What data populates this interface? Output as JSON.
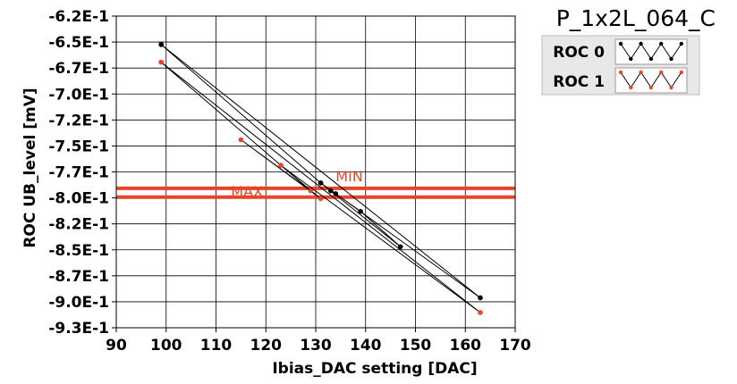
{
  "chart_data": {
    "type": "line",
    "title": "P_1x2L_064_C",
    "xlabel": "Ibias_DAC setting [DAC]",
    "ylabel": "ROC UB_level [mV]",
    "xlim": [
      90,
      170
    ],
    "ylim": [
      -0.9375,
      -0.62
    ],
    "x_ticks": [
      "90",
      "100",
      "110",
      "120",
      "130",
      "140",
      "150",
      "160",
      "170"
    ],
    "y_ticks": [
      "-6.2E-1",
      "-6.5E-1",
      "-6.7E-1",
      "-7.0E-1",
      "-7.2E-1",
      "-7.5E-1",
      "-7.7E-1",
      "-8.0E-1",
      "-8.2E-1",
      "-8.5E-1",
      "-8.7E-1",
      "-9.0E-1",
      "-9.3E-1"
    ],
    "grid": true,
    "legend_position": "top-right",
    "series": [
      {
        "name": "ROC 0",
        "color": "#000000",
        "x": [
          99,
          163,
          131,
          147,
          139,
          134,
          133,
          131,
          99
        ],
        "y": [
          -0.649,
          -0.907,
          -0.79,
          -0.855,
          -0.819,
          -0.801,
          -0.798,
          -0.79,
          -0.649
        ]
      },
      {
        "name": "ROC 1",
        "color": "#e8442a",
        "x": [
          99,
          163,
          123,
          131,
          115,
          129,
          123,
          99
        ],
        "y": [
          -0.667,
          -0.922,
          -0.772,
          -0.806,
          -0.746,
          -0.798,
          -0.772,
          -0.667
        ]
      }
    ],
    "reference_lines": [
      {
        "label": "MIN",
        "y": -0.7955,
        "color": "#e8442a"
      },
      {
        "label": "MAX",
        "y": -0.8045,
        "color": "#e8442a"
      }
    ]
  }
}
